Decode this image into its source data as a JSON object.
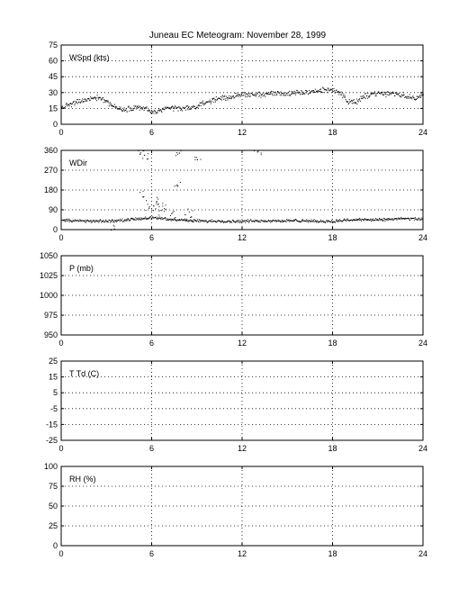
{
  "chart_data": {
    "title": "Juneau EC Meteogram:  November 28, 1999",
    "type": "scatter",
    "x_range": [
      0,
      24
    ],
    "x_ticks": [
      0,
      6,
      12,
      18,
      24
    ],
    "grid": true,
    "panels": [
      {
        "label": "WSpd (kts)",
        "ylim": [
          0,
          75
        ],
        "yticks": [
          0,
          15,
          30,
          45,
          60,
          75
        ],
        "series": [
          {
            "x": [
              0,
              0.5,
              1,
              1.5,
              2,
              2.5,
              3,
              3.5,
              4,
              4.5,
              5,
              5.5,
              6,
              6.5,
              7,
              7.5,
              8,
              8.5,
              9,
              9.5,
              10,
              10.5,
              11,
              11.5,
              12,
              12.5,
              13,
              13.5,
              14,
              14.5,
              15,
              15.5,
              16,
              16.5,
              17,
              17.5,
              18,
              18.5,
              19,
              19.5,
              20,
              20.5,
              21,
              21.5,
              22,
              22.5,
              23,
              23.5,
              24
            ],
            "y": [
              16,
              19,
              21,
              23,
              25,
              26,
              22,
              17,
              14,
              15,
              17,
              15,
              12,
              13,
              15,
              16,
              15,
              16,
              17,
              21,
              23,
              25,
              26,
              27,
              28,
              29,
              28,
              29,
              30,
              30,
              29,
              30,
              30,
              31,
              32,
              33,
              33,
              30,
              22,
              21,
              26,
              29,
              30,
              29,
              30,
              28,
              27,
              26,
              27
            ],
            "spread": 3
          }
        ]
      },
      {
        "label": "WDir",
        "ylim": [
          0,
          360
        ],
        "yticks": [
          0,
          90,
          180,
          270,
          360
        ],
        "series": [
          {
            "x": [
              0,
              1,
              2,
              3,
              4,
              5,
              6,
              7,
              8,
              9,
              10,
              11,
              12,
              13,
              14,
              15,
              16,
              17,
              18,
              19,
              20,
              21,
              22,
              23,
              24
            ],
            "y": [
              45,
              42,
              40,
              40,
              45,
              50,
              55,
              50,
              45,
              42,
              40,
              40,
              40,
              42,
              42,
              42,
              42,
              40,
              40,
              45,
              48,
              45,
              50,
              52,
              48
            ],
            "spread": 8
          }
        ],
        "outliers": {
          "x": [
            5.2,
            5.5,
            5.8,
            6.1,
            6.3,
            6.6,
            6.9,
            7.3,
            7.7,
            8.2,
            8.6,
            5.4,
            7.8,
            9.0,
            13.0,
            3.5
          ],
          "y": [
            345,
            340,
            100,
            110,
            130,
            90,
            95,
            75,
            200,
            70,
            60,
            150,
            350,
            320,
            355,
            5
          ]
        }
      },
      {
        "label": "P (mb)",
        "ylim": [
          950,
          1050
        ],
        "yticks": [
          950,
          975,
          1000,
          1025,
          1050
        ],
        "series": []
      },
      {
        "label": "T Td (C)",
        "ylim": [
          -25,
          25
        ],
        "yticks": [
          -25,
          -15,
          -5,
          5,
          15,
          25
        ],
        "series": []
      },
      {
        "label": "RH (%)",
        "ylim": [
          0,
          100
        ],
        "yticks": [
          0,
          25,
          50,
          75,
          100
        ],
        "series": []
      }
    ]
  }
}
